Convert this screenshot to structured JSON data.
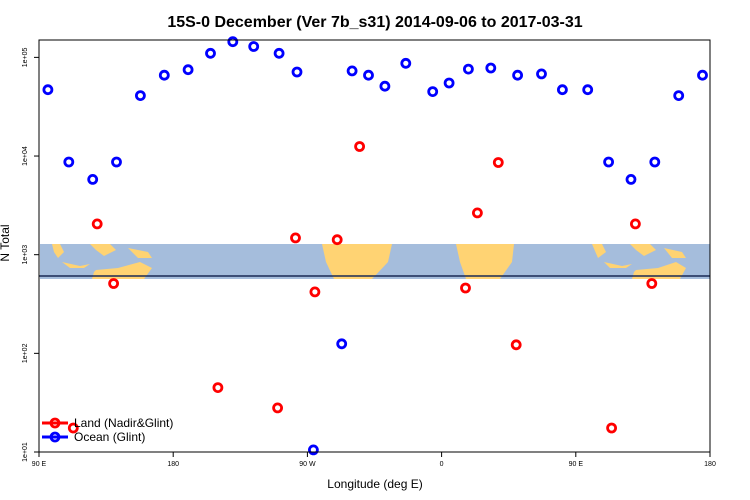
{
  "chart_data": {
    "type": "scatter",
    "title": "15S-0 December (Ver 7b_s31)   2014-09-06 to 2017-03-31",
    "xlabel": "Longitude (deg E)",
    "ylabel": "N Total",
    "x_tick_labels": [
      "90 E",
      "180",
      "90 W",
      "0",
      "90 E",
      "180"
    ],
    "y_tick_labels": [
      "1e+01",
      "1e+02",
      "1e+03",
      "1e+04",
      "1e+05"
    ],
    "y_scale": "log",
    "ylim": [
      10,
      150000
    ],
    "grid": false,
    "legend_position": "bottom-left",
    "background_map": "world map strip (land/ocean) near latitude 15S",
    "series": [
      {
        "name": "Land (Nadir&Glint)",
        "color": "#ff0000",
        "points": [
          {
            "x": 113,
            "y": 17.5
          },
          {
            "x": 129,
            "y": 2050
          },
          {
            "x": 140,
            "y": 510
          },
          {
            "x": -150,
            "y": 45
          },
          {
            "x": -110,
            "y": 28
          },
          {
            "x": -98,
            "y": 1480
          },
          {
            "x": -85,
            "y": 420
          },
          {
            "x": -70,
            "y": 1420
          },
          {
            "x": -55,
            "y": 12500
          },
          {
            "x": 16,
            "y": 460
          },
          {
            "x": 24,
            "y": 2650
          },
          {
            "x": 38,
            "y": 8600
          },
          {
            "x": 50,
            "y": 122
          },
          {
            "x": 114,
            "y": 17.5
          },
          {
            "x": 130,
            "y": 2050
          },
          {
            "x": 141,
            "y": 510
          }
        ]
      },
      {
        "name": "Ocean (Glint)",
        "color": "#0000ff",
        "points": [
          {
            "x": 96,
            "y": 47000
          },
          {
            "x": 110,
            "y": 8700
          },
          {
            "x": 126,
            "y": 5800
          },
          {
            "x": 142,
            "y": 8700
          },
          {
            "x": 158,
            "y": 41000
          },
          {
            "x": 174,
            "y": 66000
          },
          {
            "x": -170,
            "y": 75000
          },
          {
            "x": -155,
            "y": 110000
          },
          {
            "x": -140,
            "y": 144000
          },
          {
            "x": -126,
            "y": 129000
          },
          {
            "x": -109,
            "y": 110000
          },
          {
            "x": -97,
            "y": 71000
          },
          {
            "x": -86,
            "y": 10.5
          },
          {
            "x": -67,
            "y": 125
          },
          {
            "x": -60,
            "y": 73000
          },
          {
            "x": -49,
            "y": 66000
          },
          {
            "x": -38,
            "y": 51000
          },
          {
            "x": -24,
            "y": 87000
          },
          {
            "x": -6,
            "y": 45000
          },
          {
            "x": 5,
            "y": 55000
          },
          {
            "x": 18,
            "y": 76000
          },
          {
            "x": 33,
            "y": 78000
          },
          {
            "x": 51,
            "y": 66000
          },
          {
            "x": 67,
            "y": 68000
          },
          {
            "x": 81,
            "y": 47000
          },
          {
            "x": 98,
            "y": 47000
          },
          {
            "x": 112,
            "y": 8700
          },
          {
            "x": 127,
            "y": 5800
          },
          {
            "x": 143,
            "y": 8700
          },
          {
            "x": 159,
            "y": 41000
          },
          {
            "x": 175,
            "y": 66000
          }
        ]
      }
    ]
  },
  "map_colors": {
    "ocean": "#a5bddc",
    "land": "#ffd373"
  },
  "frame_color": "#000000"
}
